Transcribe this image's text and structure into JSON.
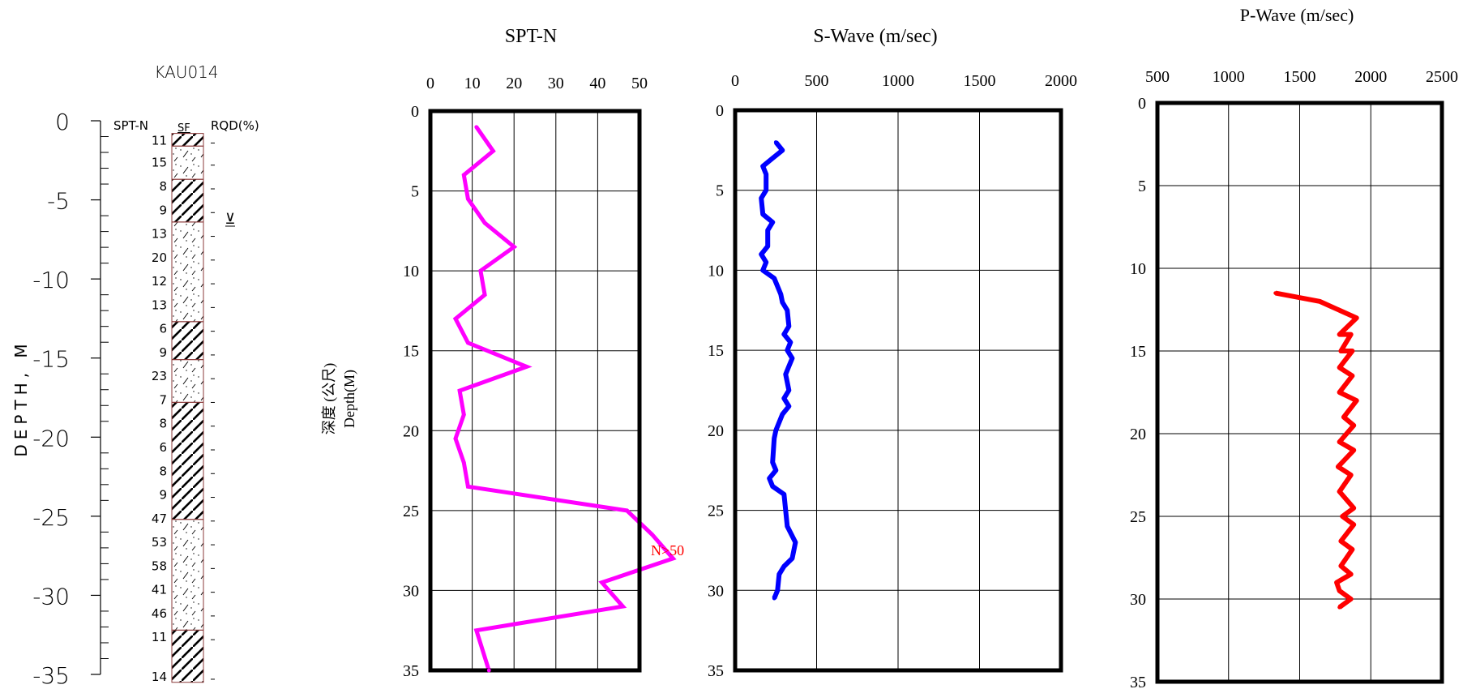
{
  "chart_data": [
    {
      "type": "borehole-log",
      "title": "KAU014",
      "ylabel": "DEPTH, M",
      "column_labels": [
        "SPT-N",
        "SF",
        "RQD(%)"
      ],
      "yticks": [
        "0",
        "-5",
        "-10",
        "-15",
        "-20",
        "-25",
        "-30",
        "-35"
      ],
      "ylim": [
        0,
        35
      ],
      "spt_values": [
        {
          "depth": 1.2,
          "n": "11"
        },
        {
          "depth": 2.6,
          "n": "15"
        },
        {
          "depth": 4.1,
          "n": "8"
        },
        {
          "depth": 5.6,
          "n": "9"
        },
        {
          "depth": 7.1,
          "n": "13"
        },
        {
          "depth": 8.6,
          "n": "20"
        },
        {
          "depth": 10.1,
          "n": "12"
        },
        {
          "depth": 11.6,
          "n": "13"
        },
        {
          "depth": 13.1,
          "n": "6"
        },
        {
          "depth": 14.6,
          "n": "9"
        },
        {
          "depth": 16.1,
          "n": "23"
        },
        {
          "depth": 17.6,
          "n": "7"
        },
        {
          "depth": 19.1,
          "n": "8"
        },
        {
          "depth": 20.6,
          "n": "6"
        },
        {
          "depth": 22.1,
          "n": "8"
        },
        {
          "depth": 23.6,
          "n": "9"
        },
        {
          "depth": 25.1,
          "n": "47"
        },
        {
          "depth": 26.6,
          "n": "53"
        },
        {
          "depth": 28.1,
          "n": "58"
        },
        {
          "depth": 29.6,
          "n": "41"
        },
        {
          "depth": 31.1,
          "n": "46"
        },
        {
          "depth": 32.6,
          "n": "11"
        },
        {
          "depth": 35.1,
          "n": "14"
        }
      ],
      "layers": [
        {
          "top": 0.8,
          "bottom": 1.6,
          "pattern": "clay"
        },
        {
          "top": 1.6,
          "bottom": 3.7,
          "pattern": "sand"
        },
        {
          "top": 3.7,
          "bottom": 6.4,
          "pattern": "clay"
        },
        {
          "top": 6.4,
          "bottom": 12.7,
          "pattern": "sand"
        },
        {
          "top": 12.7,
          "bottom": 15.1,
          "pattern": "clay"
        },
        {
          "top": 15.1,
          "bottom": 17.8,
          "pattern": "sand"
        },
        {
          "top": 17.8,
          "bottom": 25.2,
          "pattern": "clay"
        },
        {
          "top": 25.2,
          "bottom": 32.2,
          "pattern": "sand"
        },
        {
          "top": 32.2,
          "bottom": 35.5,
          "pattern": "clay"
        }
      ],
      "water_table_depth": 6.2,
      "water_table_symbol": "⊻"
    },
    {
      "type": "line",
      "title": "SPT-N",
      "ylabel": "深度 (公尺)",
      "ylabel2": "Depth(M)",
      "xlim": [
        0,
        50
      ],
      "xticks": [
        "0",
        "10",
        "20",
        "30",
        "40",
        "50"
      ],
      "ylim": [
        0,
        35
      ],
      "yticks": [
        "0",
        "5",
        "10",
        "15",
        "20",
        "25",
        "30",
        "35"
      ],
      "color": "#ff00ff",
      "annotation": "N>50",
      "annotation_color": "#ff0000",
      "points": [
        [
          11,
          1.0
        ],
        [
          15,
          2.5
        ],
        [
          8,
          4.0
        ],
        [
          9,
          5.5
        ],
        [
          13,
          7.0
        ],
        [
          20,
          8.5
        ],
        [
          12,
          10.0
        ],
        [
          13,
          11.5
        ],
        [
          6,
          13.0
        ],
        [
          9,
          14.5
        ],
        [
          23,
          16.0
        ],
        [
          7,
          17.5
        ],
        [
          8,
          19.0
        ],
        [
          6,
          20.5
        ],
        [
          8,
          22.0
        ],
        [
          9,
          23.5
        ],
        [
          47,
          25.0
        ],
        [
          53,
          26.5
        ],
        [
          58,
          28.0
        ],
        [
          41,
          29.5
        ],
        [
          46,
          31.0
        ],
        [
          11,
          32.5
        ],
        [
          14,
          35.0
        ]
      ]
    },
    {
      "type": "line",
      "title": "S-Wave (m/sec)",
      "xlim": [
        0,
        2000
      ],
      "xticks": [
        "0",
        "500",
        "1000",
        "1500",
        "2000"
      ],
      "ylim": [
        0,
        35
      ],
      "yticks": [
        "0",
        "5",
        "10",
        "15",
        "20",
        "25",
        "30",
        "35"
      ],
      "color": "#0000ff",
      "points": [
        [
          250,
          2.0
        ],
        [
          290,
          2.5
        ],
        [
          230,
          3.0
        ],
        [
          170,
          3.5
        ],
        [
          190,
          4.0
        ],
        [
          190,
          5.0
        ],
        [
          160,
          5.5
        ],
        [
          170,
          6.5
        ],
        [
          230,
          7.0
        ],
        [
          200,
          7.5
        ],
        [
          200,
          8.5
        ],
        [
          160,
          9.0
        ],
        [
          190,
          9.5
        ],
        [
          170,
          10.0
        ],
        [
          240,
          10.5
        ],
        [
          280,
          11.5
        ],
        [
          290,
          12.0
        ],
        [
          320,
          12.5
        ],
        [
          330,
          13.5
        ],
        [
          300,
          14.0
        ],
        [
          340,
          14.5
        ],
        [
          320,
          15.0
        ],
        [
          350,
          15.5
        ],
        [
          330,
          16.0
        ],
        [
          310,
          16.5
        ],
        [
          320,
          17.0
        ],
        [
          330,
          17.5
        ],
        [
          300,
          18.0
        ],
        [
          330,
          18.5
        ],
        [
          290,
          19.0
        ],
        [
          250,
          20.0
        ],
        [
          240,
          20.5
        ],
        [
          230,
          22.0
        ],
        [
          250,
          22.5
        ],
        [
          210,
          23.0
        ],
        [
          230,
          23.5
        ],
        [
          300,
          24.0
        ],
        [
          310,
          25.0
        ],
        [
          320,
          26.0
        ],
        [
          370,
          27.0
        ],
        [
          350,
          28.0
        ],
        [
          300,
          28.5
        ],
        [
          270,
          29.0
        ],
        [
          260,
          30.0
        ],
        [
          240,
          30.5
        ]
      ]
    },
    {
      "type": "line",
      "title": "P-Wave (m/sec)",
      "xlim": [
        500,
        2500
      ],
      "xticks": [
        "500",
        "1000",
        "1500",
        "2000",
        "2500"
      ],
      "ylim": [
        0,
        35
      ],
      "yticks": [
        "0",
        "5",
        "10",
        "15",
        "20",
        "25",
        "30",
        "35"
      ],
      "color": "#ff0000",
      "points": [
        [
          1330,
          11.5
        ],
        [
          1640,
          12.0
        ],
        [
          1900,
          13.0
        ],
        [
          1780,
          14.0
        ],
        [
          1860,
          14.0
        ],
        [
          1790,
          15.0
        ],
        [
          1870,
          15.0
        ],
        [
          1780,
          16.0
        ],
        [
          1870,
          16.5
        ],
        [
          1780,
          17.5
        ],
        [
          1900,
          18.0
        ],
        [
          1810,
          19.0
        ],
        [
          1880,
          19.5
        ],
        [
          1780,
          20.5
        ],
        [
          1880,
          21.0
        ],
        [
          1770,
          22.0
        ],
        [
          1860,
          22.5
        ],
        [
          1780,
          23.5
        ],
        [
          1880,
          24.5
        ],
        [
          1800,
          25.0
        ],
        [
          1880,
          25.5
        ],
        [
          1790,
          26.5
        ],
        [
          1870,
          27.0
        ],
        [
          1790,
          28.0
        ],
        [
          1860,
          28.5
        ],
        [
          1760,
          29.0
        ],
        [
          1780,
          29.5
        ],
        [
          1860,
          30.0
        ],
        [
          1780,
          30.5
        ]
      ]
    }
  ]
}
